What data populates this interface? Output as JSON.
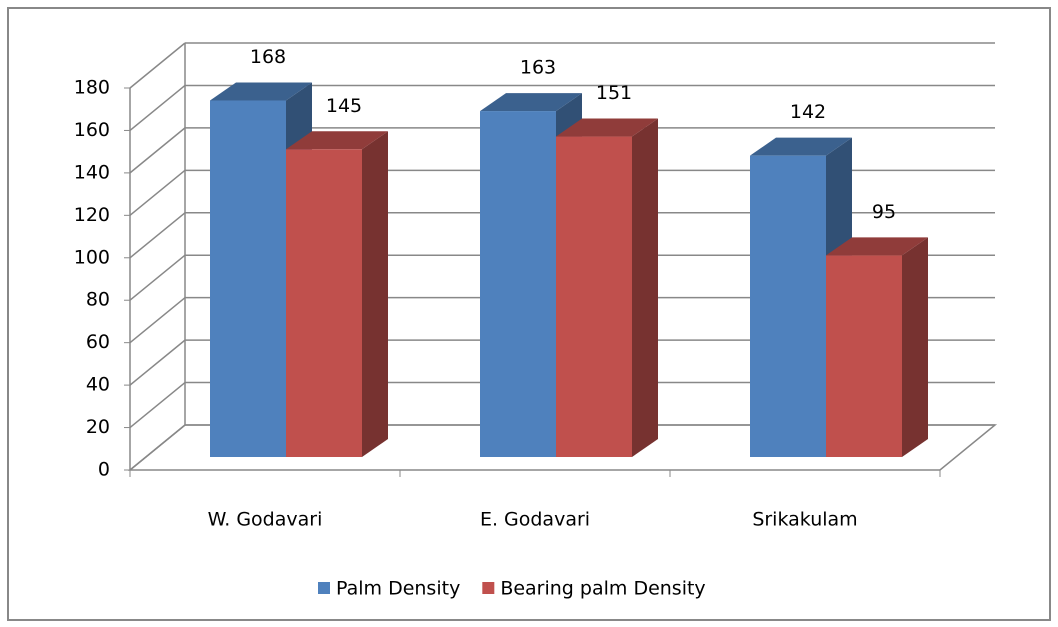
{
  "chart_data": {
    "type": "bar3d",
    "categories": [
      "W. Godavari",
      "E. Godavari",
      "Srikakulam"
    ],
    "series": [
      {
        "name": "Palm Density",
        "color": "#4f81bd",
        "values": [
          168,
          163,
          142
        ]
      },
      {
        "name": "Bearing palm Density",
        "color": "#c0504d",
        "values": [
          145,
          151,
          95
        ]
      }
    ],
    "ylim": [
      0,
      180
    ],
    "yticks": [
      0,
      20,
      40,
      60,
      80,
      100,
      120,
      140,
      160,
      180
    ],
    "grid": true,
    "legend": "bottom"
  }
}
